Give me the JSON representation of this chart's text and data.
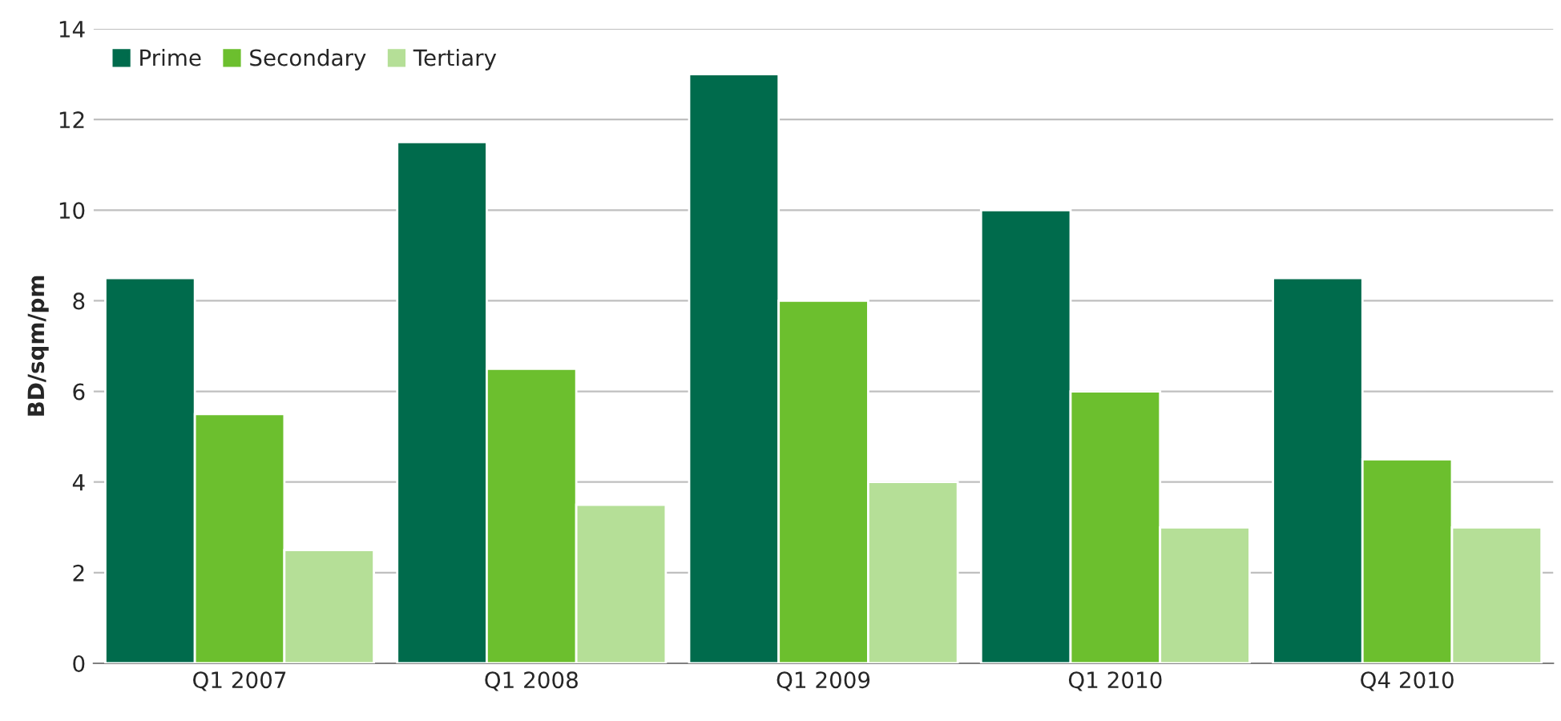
{
  "chart_data": {
    "type": "bar",
    "ylabel": "BD/sqm/pm",
    "categories": [
      "Q1 2007",
      "Q1 2008",
      "Q1 2009",
      "Q1 2010",
      "Q4 2010"
    ],
    "series": [
      {
        "name": "Prime",
        "color": "#006b4c",
        "values": [
          8.5,
          11.5,
          13,
          10,
          8.5
        ]
      },
      {
        "name": "Secondary",
        "color": "#6cbf2e",
        "values": [
          5.5,
          6.5,
          8,
          6,
          4.5
        ]
      },
      {
        "name": "Tertiary",
        "color": "#b5df97",
        "values": [
          2.5,
          3.5,
          4,
          3,
          3
        ]
      }
    ],
    "ylim": [
      0,
      14
    ],
    "yticks": [
      0,
      2,
      4,
      6,
      8,
      10,
      12,
      14
    ],
    "grid": "y",
    "legend": "top left"
  }
}
